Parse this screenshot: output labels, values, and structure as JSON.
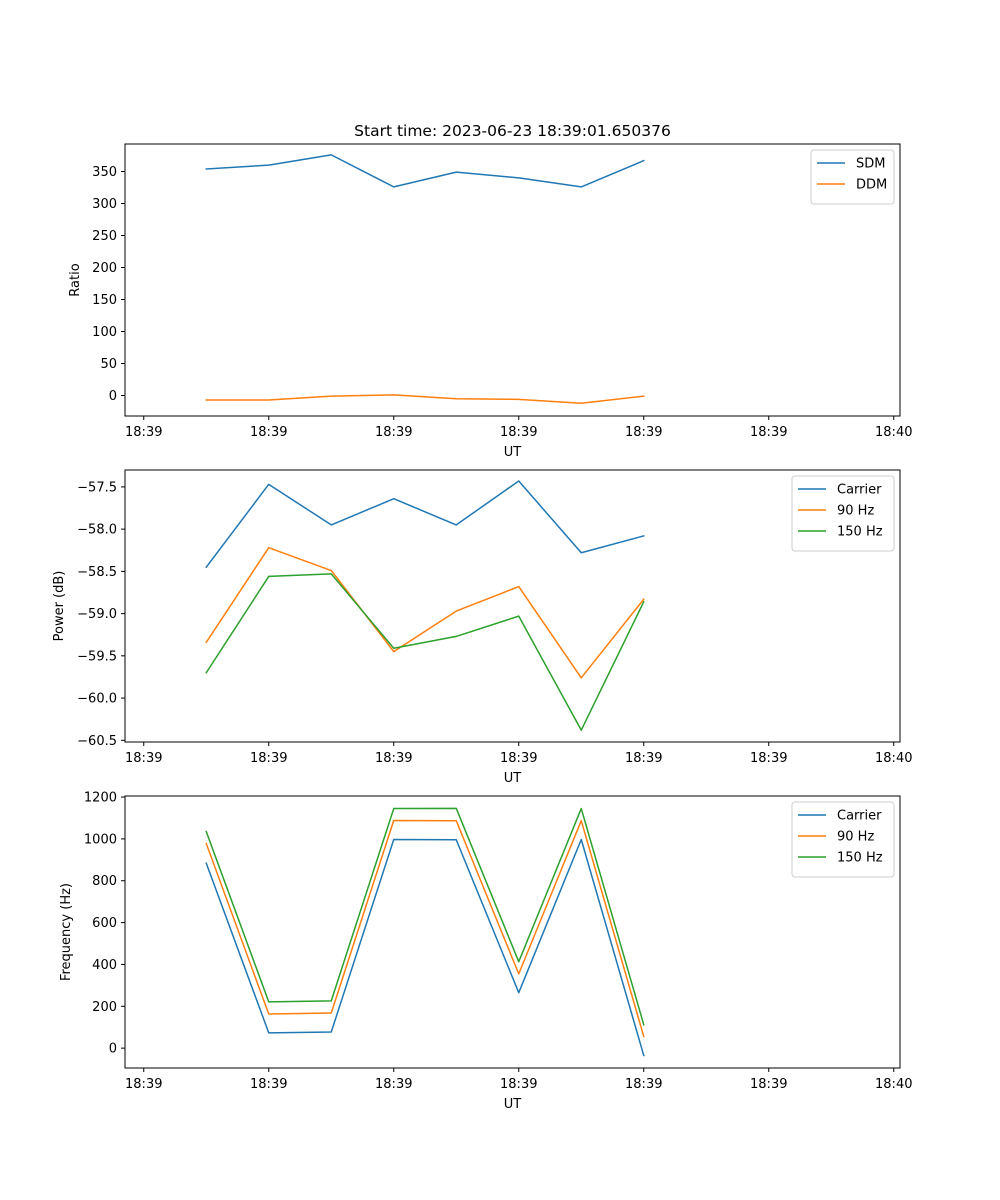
{
  "figure": {
    "title": "Start time: 2023-06-23 18:39:01.650376"
  },
  "colors": {
    "blue": "#1f77b4",
    "orange": "#ff7f0e",
    "green": "#2ca02c",
    "axes": "#000000",
    "legend_border": "#cccccc",
    "background": "#ffffff"
  },
  "chart_data": [
    {
      "type": "line",
      "title": "Start time: 2023-06-23 18:39:01.650376",
      "xlabel": "UT",
      "ylabel": "Ratio",
      "grid": false,
      "legend_position": "upper right",
      "x": [
        1.0,
        2.0,
        3.0,
        4.0,
        5.0,
        6.0,
        7.0,
        8.0
      ],
      "x_ticks": [
        0,
        2.0,
        4.0,
        6.0,
        8.0,
        10.0,
        12.0
      ],
      "x_tick_labels": [
        "18:39",
        "18:39",
        "18:39",
        "18:39",
        "18:39",
        "18:39",
        "18:40"
      ],
      "xlim": [
        -0.3,
        12.1
      ],
      "ylim": [
        -32,
        393
      ],
      "y_ticks": [
        0,
        50,
        100,
        150,
        200,
        250,
        300,
        350
      ],
      "y_tick_labels": [
        "0",
        "50",
        "100",
        "150",
        "200",
        "250",
        "300",
        "350"
      ],
      "series": [
        {
          "name": "SDM",
          "color": "#1f77b4",
          "values": [
            354,
            360,
            376,
            326,
            349,
            340,
            326,
            367
          ]
        },
        {
          "name": "DDM",
          "color": "#ff7f0e",
          "values": [
            -7,
            -7,
            -1,
            1,
            -5,
            -6,
            -12,
            -1
          ]
        }
      ]
    },
    {
      "type": "line",
      "title": "",
      "xlabel": "UT",
      "ylabel": "Power (dB)",
      "grid": false,
      "legend_position": "upper right",
      "x": [
        1.0,
        2.0,
        3.0,
        4.0,
        5.0,
        6.0,
        7.0,
        8.0
      ],
      "x_ticks": [
        0,
        2.0,
        4.0,
        6.0,
        8.0,
        10.0,
        12.0
      ],
      "x_tick_labels": [
        "18:39",
        "18:39",
        "18:39",
        "18:39",
        "18:39",
        "18:39",
        "18:40"
      ],
      "xlim": [
        -0.3,
        12.1
      ],
      "ylim": [
        -60.52,
        -57.3
      ],
      "y_ticks": [
        -60.5,
        -60.0,
        -59.5,
        -59.0,
        -58.5,
        -58.0,
        -57.5
      ],
      "y_tick_labels": [
        "−60.5",
        "−60.0",
        "−59.5",
        "−59.0",
        "−58.5",
        "−58.0",
        "−57.5"
      ],
      "series": [
        {
          "name": "Carrier",
          "color": "#1f77b4",
          "values": [
            -58.45,
            -57.47,
            -57.95,
            -57.64,
            -57.95,
            -57.43,
            -58.28,
            -58.08
          ]
        },
        {
          "name": "90 Hz",
          "color": "#ff7f0e",
          "values": [
            -59.34,
            -58.22,
            -58.49,
            -59.45,
            -58.97,
            -58.68,
            -59.76,
            -58.83
          ]
        },
        {
          "name": "150 Hz",
          "color": "#2ca02c",
          "values": [
            -59.7,
            -58.56,
            -58.53,
            -59.41,
            -59.27,
            -59.03,
            -60.38,
            -58.86
          ]
        }
      ]
    },
    {
      "type": "line",
      "title": "",
      "xlabel": "UT",
      "ylabel": "Frequency (Hz)",
      "grid": false,
      "legend_position": "upper right",
      "x": [
        1.0,
        2.0,
        3.0,
        4.0,
        5.0,
        6.0,
        7.0,
        8.0
      ],
      "x_ticks": [
        0,
        2.0,
        4.0,
        6.0,
        8.0,
        10.0,
        12.0
      ],
      "x_tick_labels": [
        "18:39",
        "18:39",
        "18:39",
        "18:39",
        "18:39",
        "18:39",
        "18:40"
      ],
      "xlim": [
        -0.3,
        12.1
      ],
      "ylim": [
        -95,
        1205
      ],
      "y_ticks": [
        0,
        200,
        400,
        600,
        800,
        1000,
        1200
      ],
      "y_tick_labels": [
        "0",
        "200",
        "400",
        "600",
        "800",
        "1000",
        "1200"
      ],
      "series": [
        {
          "name": "Carrier",
          "color": "#1f77b4",
          "values": [
            884,
            73,
            77,
            997,
            996,
            265,
            997,
            -35
          ]
        },
        {
          "name": "90 Hz",
          "color": "#ff7f0e",
          "values": [
            978,
            163,
            168,
            1088,
            1087,
            355,
            1087,
            56
          ]
        },
        {
          "name": "150 Hz",
          "color": "#2ca02c",
          "values": [
            1035,
            221,
            226,
            1145,
            1146,
            413,
            1145,
            112
          ]
        }
      ]
    }
  ]
}
